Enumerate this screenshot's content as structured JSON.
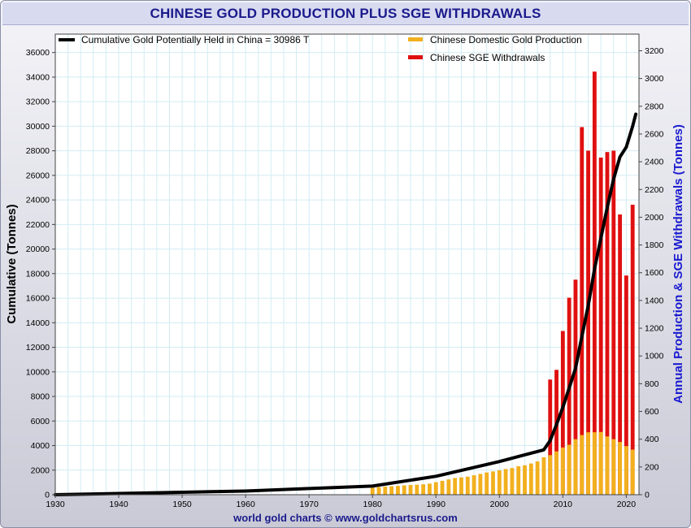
{
  "chart_data": {
    "type": "bar",
    "title": "CHINESE GOLD PRODUCTION PLUS SGE WITHDRAWALS",
    "source_credit": "world gold charts © www.goldchartsrus.com",
    "ylabel_left": "Cumulative (Tonnes)",
    "ylabel_right": "Annual Production & SGE Withdrawals (Tonnes)",
    "xlim": [
      1930,
      2022
    ],
    "ylim_left": [
      0,
      37500
    ],
    "ylim_right": [
      0,
      3320
    ],
    "x_ticks": [
      1930,
      1940,
      1950,
      1960,
      1970,
      1980,
      1990,
      2000,
      2010,
      2020
    ],
    "y_ticks_left": [
      0,
      2000,
      4000,
      6000,
      8000,
      10000,
      12000,
      14000,
      16000,
      18000,
      20000,
      22000,
      24000,
      26000,
      28000,
      30000,
      32000,
      34000,
      36000
    ],
    "y_ticks_right": [
      0,
      200,
      400,
      600,
      800,
      1000,
      1200,
      1400,
      1600,
      1800,
      2000,
      2200,
      2400,
      2600,
      2800,
      3000,
      3200
    ],
    "grid": true,
    "legend": {
      "line_label": "Cumulative Gold Potentially Held in China  = 30986 T",
      "production_label": "Chinese Domestic Gold Production",
      "withdrawals_label": "Chinese SGE Withdrawals",
      "placement": "top"
    },
    "colors": {
      "production": "#f2b01e",
      "withdrawals": "#e01010",
      "cumulative": "#000000",
      "grid": "#d2ecf4",
      "right_axis_title": "#1a1ad0",
      "title": "#1a1a8c"
    },
    "years": [
      1980,
      1981,
      1982,
      1983,
      1984,
      1985,
      1986,
      1987,
      1988,
      1989,
      1990,
      1991,
      1992,
      1993,
      1994,
      1995,
      1996,
      1997,
      1998,
      1999,
      2000,
      2001,
      2002,
      2003,
      2004,
      2005,
      2006,
      2007,
      2008,
      2009,
      2010,
      2011,
      2012,
      2013,
      2014,
      2015,
      2016,
      2017,
      2018,
      2019,
      2020,
      2021
    ],
    "production": [
      52,
      55,
      58,
      61,
      64,
      67,
      70,
      72,
      75,
      80,
      90,
      100,
      110,
      120,
      125,
      130,
      140,
      150,
      160,
      168,
      176,
      185,
      192,
      205,
      212,
      225,
      240,
      270,
      285,
      312,
      340,
      360,
      400,
      430,
      450,
      450,
      452,
      420,
      400,
      380,
      350,
      325
    ],
    "withdrawals": [
      0,
      0,
      0,
      0,
      0,
      0,
      0,
      0,
      0,
      0,
      0,
      0,
      0,
      0,
      0,
      0,
      0,
      0,
      0,
      0,
      0,
      0,
      0,
      0,
      0,
      0,
      0,
      0,
      830,
      900,
      1180,
      1420,
      1550,
      2650,
      2480,
      3050,
      2430,
      2470,
      2480,
      2020,
      1580,
      2090
    ],
    "cumulative_series": {
      "name": "Cumulative Gold Potentially Held in China",
      "x": [
        1930,
        1940,
        1950,
        1960,
        1970,
        1980,
        1990,
        2000,
        2007,
        2008,
        2009,
        2010,
        2011,
        2012,
        2013,
        2014,
        2015,
        2016,
        2017,
        2018,
        2019,
        2020,
        2021,
        2021.5
      ],
      "y": [
        0,
        100,
        200,
        300,
        500,
        700,
        1500,
        2700,
        3650,
        4400,
        5700,
        7100,
        8700,
        10300,
        12900,
        15400,
        18400,
        20900,
        23400,
        25700,
        27500,
        28300,
        30000,
        30986
      ]
    }
  }
}
